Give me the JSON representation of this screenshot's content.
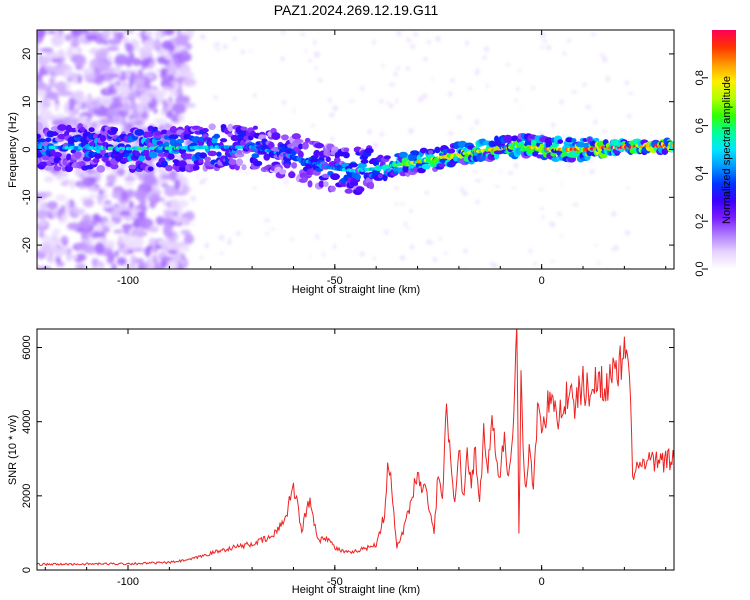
{
  "title": "PAZ1.2024.269.12.19.G11",
  "chart_data": [
    {
      "type": "heatmap",
      "xlabel": "Height of straight line (km)",
      "ylabel": "Frequency (Hz)",
      "xlim": [
        -122,
        32
      ],
      "ylim": [
        -25,
        25
      ],
      "xticks": [
        -100,
        -50,
        0
      ],
      "yticks": [
        -20,
        -10,
        0,
        10,
        20
      ],
      "colorbar": {
        "label": "Normalized spectral amplitude",
        "range": [
          0,
          1
        ],
        "ticks": [
          "0.0",
          "0.2",
          "0.4",
          "0.6",
          "0.8"
        ],
        "colors": [
          "#ffffff",
          "#e6d2ff",
          "#b07cff",
          "#7a1dff",
          "#3a00ff",
          "#0033ff",
          "#0099ff",
          "#00e6ff",
          "#00ff99",
          "#33ff00",
          "#b3ff00",
          "#ffee00",
          "#ff9900",
          "#ff3300",
          "#ff0055"
        ]
      },
      "ridge": {
        "x": [
          -122,
          -110,
          -100,
          -90,
          -80,
          -70,
          -60,
          -55,
          -50,
          -45,
          -40,
          -35,
          -30,
          -25,
          -20,
          -15,
          -10,
          -5,
          0,
          5,
          10,
          15,
          20,
          25,
          32
        ],
        "y": [
          0.5,
          0.3,
          0.2,
          0.3,
          0.5,
          0.5,
          -1.5,
          -3.0,
          -4.0,
          -4.5,
          -4.0,
          -3.2,
          -2.6,
          -1.8,
          -1.0,
          -0.3,
          0.2,
          0.8,
          0.2,
          0.0,
          0.0,
          0.3,
          0.5,
          0.7,
          0.8
        ],
        "amplitude": [
          0.45,
          0.5,
          0.55,
          0.55,
          0.5,
          0.45,
          0.4,
          0.4,
          0.45,
          0.5,
          0.55,
          0.65,
          0.75,
          0.75,
          0.8,
          0.75,
          0.75,
          0.7,
          0.8,
          0.85,
          0.85,
          0.9,
          0.95,
          0.95,
          0.95
        ]
      }
    },
    {
      "type": "line",
      "xlabel": "Height of straight line (km)",
      "ylabel": "SNR (10 * v/v)",
      "xlim": [
        -122,
        32
      ],
      "ylim": [
        0,
        6500
      ],
      "xticks": [
        -100,
        -50,
        0
      ],
      "yticks": [
        0,
        2000,
        4000,
        6000
      ],
      "color": "#ee2222",
      "series": [
        {
          "x": [
            -122,
            -110,
            -100,
            -90,
            -85,
            -80,
            -75,
            -70,
            -65,
            -62,
            -60,
            -58,
            -56,
            -54,
            -52,
            -50,
            -48,
            -46,
            -44,
            -42,
            -40,
            -38,
            -37,
            -36,
            -35,
            -33,
            -31,
            -30,
            -29,
            -28,
            -27,
            -26,
            -25,
            -24,
            -23,
            -22,
            -21,
            -20,
            -19,
            -18,
            -17,
            -16,
            -15,
            -14,
            -13,
            -12,
            -11,
            -10,
            -9,
            -8,
            -7,
            -6,
            -5.5,
            -5,
            -4,
            -3,
            -2,
            -1,
            0,
            2,
            4,
            6,
            8,
            10,
            12,
            14,
            16,
            18,
            20,
            21,
            22,
            24,
            26,
            28,
            30,
            32
          ],
          "y": [
            150,
            160,
            170,
            200,
            280,
            450,
            600,
            700,
            900,
            1400,
            2300,
            1100,
            1900,
            800,
            900,
            600,
            500,
            450,
            550,
            600,
            700,
            1500,
            3000,
            1800,
            600,
            1200,
            2200,
            2600,
            2100,
            2500,
            1500,
            1000,
            2700,
            1800,
            4400,
            2900,
            1700,
            3400,
            2000,
            3000,
            2400,
            3200,
            2000,
            3600,
            2800,
            3800,
            3200,
            2300,
            3900,
            2500,
            3500,
            6500,
            1000,
            5000,
            2200,
            3100,
            2400,
            4300,
            4000,
            4500,
            4200,
            4700,
            4500,
            5000,
            4800,
            5200,
            5000,
            5300,
            5700,
            5600,
            2700,
            2800,
            2900,
            2900,
            2950,
            3000
          ]
        }
      ]
    }
  ]
}
